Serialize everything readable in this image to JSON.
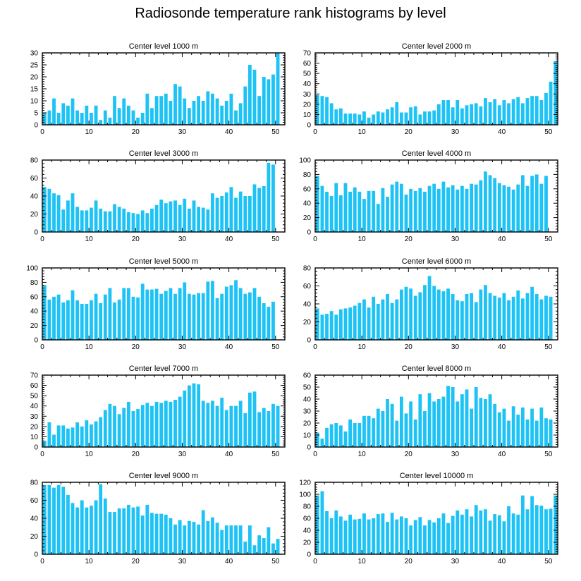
{
  "title": "Radiosonde temperature rank histograms by level",
  "bar_color": "#1ec3f6",
  "chart_data": [
    {
      "type": "bar",
      "title": "Center level 1000 m",
      "xlabel": "",
      "ylabel": "",
      "xlim": [
        0,
        52
      ],
      "ylim": [
        0,
        30
      ],
      "xticks": [
        0,
        10,
        20,
        30,
        40,
        50
      ],
      "yticks": [
        0,
        5,
        10,
        15,
        20,
        25,
        30
      ],
      "values": [
        5,
        6,
        11,
        5,
        9,
        8,
        11,
        6,
        5,
        8,
        5,
        8,
        2,
        6,
        3,
        12,
        7,
        11,
        8,
        6,
        3,
        5,
        13,
        7,
        12,
        12,
        13,
        10,
        17,
        16,
        11,
        7,
        10,
        12,
        10,
        14,
        13,
        11,
        8,
        10,
        13,
        6,
        9,
        16,
        25,
        23,
        12,
        20,
        19,
        21,
        30
      ]
    },
    {
      "type": "bar",
      "title": "Center level 2000 m",
      "xlabel": "",
      "ylabel": "",
      "xlim": [
        0,
        52
      ],
      "ylim": [
        0,
        70
      ],
      "xticks": [
        0,
        10,
        20,
        30,
        40,
        50
      ],
      "yticks": [
        0,
        10,
        20,
        30,
        40,
        50,
        60,
        70
      ],
      "values": [
        29,
        28,
        27,
        21,
        15,
        16,
        11,
        11,
        11,
        10,
        13,
        7,
        10,
        13,
        12,
        15,
        17,
        22,
        12,
        12,
        17,
        18,
        10,
        13,
        13,
        14,
        20,
        24,
        24,
        17,
        24,
        16,
        19,
        20,
        21,
        18,
        26,
        22,
        25,
        19,
        24,
        21,
        25,
        27,
        21,
        26,
        28,
        28,
        24,
        31,
        42,
        62
      ]
    },
    {
      "type": "bar",
      "title": "Center level 3000 m",
      "xlabel": "",
      "ylabel": "",
      "xlim": [
        0,
        52
      ],
      "ylim": [
        0,
        80
      ],
      "xticks": [
        0,
        10,
        20,
        30,
        40,
        50
      ],
      "yticks": [
        0,
        20,
        40,
        60,
        80
      ],
      "values": [
        50,
        48,
        43,
        41,
        25,
        35,
        43,
        28,
        24,
        24,
        27,
        35,
        26,
        23,
        23,
        31,
        28,
        26,
        22,
        21,
        20,
        24,
        21,
        26,
        30,
        36,
        32,
        34,
        35,
        30,
        37,
        26,
        35,
        28,
        27,
        25,
        43,
        38,
        40,
        44,
        50,
        38,
        45,
        40,
        40,
        53,
        49,
        51,
        77,
        75
      ]
    },
    {
      "type": "bar",
      "title": "Center level 4000 m",
      "xlabel": "",
      "ylabel": "",
      "xlim": [
        0,
        52
      ],
      "ylim": [
        0,
        100
      ],
      "xticks": [
        0,
        10,
        20,
        30,
        40,
        50
      ],
      "yticks": [
        0,
        20,
        40,
        60,
        80,
        100
      ],
      "values": [
        78,
        64,
        56,
        50,
        68,
        51,
        68,
        56,
        62,
        56,
        46,
        57,
        57,
        39,
        61,
        49,
        66,
        70,
        67,
        52,
        60,
        57,
        61,
        56,
        64,
        67,
        60,
        70,
        62,
        65,
        59,
        64,
        60,
        67,
        66,
        72,
        84,
        79,
        75,
        68,
        65,
        63,
        59,
        66,
        79,
        64,
        78,
        80,
        67,
        78
      ]
    },
    {
      "type": "bar",
      "title": "Center level 5000 m",
      "xlabel": "",
      "ylabel": "",
      "xlim": [
        0,
        52
      ],
      "ylim": [
        0,
        100
      ],
      "xticks": [
        0,
        10,
        20,
        30,
        40,
        50
      ],
      "yticks": [
        0,
        20,
        40,
        60,
        80,
        100
      ],
      "values": [
        76,
        56,
        60,
        63,
        52,
        55,
        69,
        55,
        50,
        50,
        55,
        64,
        51,
        63,
        72,
        52,
        56,
        72,
        72,
        60,
        59,
        78,
        70,
        70,
        71,
        64,
        68,
        72,
        64,
        72,
        80,
        64,
        63,
        65,
        65,
        81,
        82,
        58,
        64,
        74,
        76,
        83,
        72,
        64,
        66,
        72,
        60,
        51,
        46,
        53
      ]
    },
    {
      "type": "bar",
      "title": "Center level 6000 m",
      "xlabel": "",
      "ylabel": "",
      "xlim": [
        0,
        52
      ],
      "ylim": [
        0,
        80
      ],
      "xticks": [
        0,
        10,
        20,
        30,
        40,
        50
      ],
      "yticks": [
        0,
        20,
        40,
        60,
        80
      ],
      "values": [
        35,
        28,
        29,
        32,
        28,
        34,
        35,
        36,
        38,
        41,
        45,
        36,
        48,
        40,
        45,
        51,
        41,
        45,
        56,
        59,
        57,
        49,
        53,
        61,
        71,
        60,
        56,
        54,
        57,
        51,
        44,
        43,
        51,
        52,
        42,
        56,
        61,
        52,
        49,
        47,
        52,
        44,
        48,
        55,
        46,
        52,
        59,
        51,
        45,
        49,
        48
      ]
    },
    {
      "type": "bar",
      "title": "Center level 7000 m",
      "xlabel": "",
      "ylabel": "",
      "xlim": [
        0,
        52
      ],
      "ylim": [
        0,
        70
      ],
      "xticks": [
        0,
        10,
        20,
        30,
        40,
        50
      ],
      "yticks": [
        0,
        10,
        20,
        30,
        40,
        50,
        60,
        70
      ],
      "values": [
        6,
        24,
        12,
        21,
        21,
        18,
        19,
        24,
        20,
        26,
        22,
        25,
        29,
        36,
        42,
        40,
        32,
        38,
        44,
        35,
        37,
        41,
        43,
        40,
        44,
        43,
        45,
        44,
        46,
        49,
        55,
        60,
        62,
        61,
        45,
        43,
        45,
        40,
        48,
        36,
        40,
        40,
        45,
        33,
        53,
        54,
        34,
        38,
        35,
        42,
        40
      ]
    },
    {
      "type": "bar",
      "title": "Center level 8000 m",
      "xlabel": "",
      "ylabel": "",
      "xlim": [
        0,
        52
      ],
      "ylim": [
        0,
        60
      ],
      "xticks": [
        0,
        10,
        20,
        30,
        40,
        50
      ],
      "yticks": [
        0,
        10,
        20,
        30,
        40,
        50,
        60
      ],
      "values": [
        12,
        7,
        16,
        19,
        20,
        18,
        13,
        23,
        20,
        20,
        26,
        26,
        24,
        32,
        30,
        40,
        36,
        22,
        42,
        28,
        38,
        23,
        44,
        30,
        45,
        38,
        40,
        42,
        51,
        50,
        38,
        44,
        48,
        32,
        50,
        41,
        40,
        44,
        36,
        29,
        32,
        22,
        34,
        27,
        33,
        23,
        32,
        22,
        33,
        24,
        23
      ]
    },
    {
      "type": "bar",
      "title": "Center level 9000 m",
      "xlabel": "",
      "ylabel": "",
      "xlim": [
        0,
        52
      ],
      "ylim": [
        0,
        80
      ],
      "xticks": [
        0,
        10,
        20,
        30,
        40,
        50
      ],
      "yticks": [
        0,
        20,
        40,
        60,
        80
      ],
      "values": [
        77,
        77,
        74,
        77,
        75,
        66,
        57,
        52,
        60,
        52,
        54,
        60,
        78,
        62,
        47,
        47,
        51,
        51,
        55,
        52,
        53,
        43,
        55,
        46,
        45,
        45,
        44,
        40,
        33,
        38,
        32,
        37,
        36,
        33,
        49,
        37,
        41,
        35,
        27,
        32,
        32,
        32,
        32,
        14,
        32,
        10,
        21,
        18,
        30,
        12,
        17
      ]
    },
    {
      "type": "bar",
      "title": "Center level 10000 m",
      "xlabel": "",
      "ylabel": "",
      "xlim": [
        0,
        52
      ],
      "ylim": [
        0,
        120
      ],
      "xticks": [
        0,
        10,
        20,
        30,
        40,
        50
      ],
      "yticks": [
        0,
        20,
        40,
        60,
        80,
        100,
        120
      ],
      "values": [
        98,
        105,
        72,
        60,
        73,
        63,
        56,
        66,
        58,
        59,
        68,
        58,
        60,
        67,
        68,
        54,
        69,
        58,
        63,
        60,
        48,
        57,
        62,
        48,
        57,
        53,
        60,
        68,
        52,
        64,
        73,
        66,
        75,
        63,
        82,
        73,
        75,
        56,
        67,
        65,
        55,
        80,
        68,
        66,
        98,
        75,
        97,
        82,
        81,
        75,
        76,
        98
      ]
    }
  ]
}
